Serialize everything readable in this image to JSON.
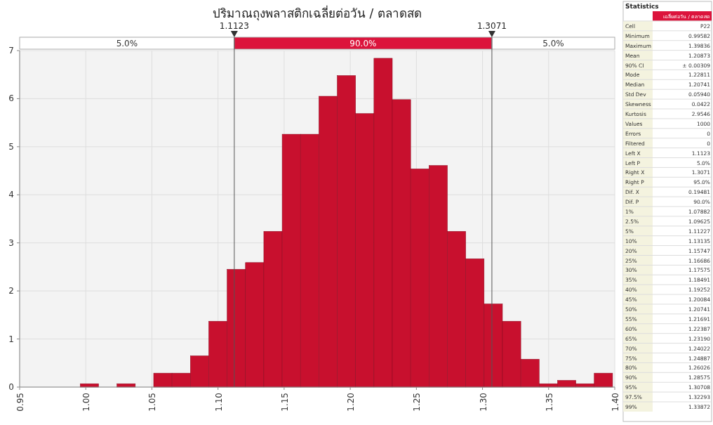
{
  "chart_data": [
    {
      "type": "histogram",
      "title": "ปริมาณถุงพลาสติกเฉลี่ยต่อวัน / ตลาดสด",
      "bins": [
        0.99582,
        1.0097,
        1.02358,
        1.03746,
        1.05134,
        1.06522,
        1.0791,
        1.09298,
        1.10687,
        1.12075,
        1.13463,
        1.14851,
        1.16239,
        1.17627,
        1.19015,
        1.20403,
        1.21791,
        1.23179,
        1.24567,
        1.25955,
        1.27344,
        1.28732,
        1.3012,
        1.31508,
        1.32896,
        1.34284,
        1.35672,
        1.3706,
        1.38448,
        1.39836
      ],
      "values": [
        0.07,
        0,
        0.07,
        0,
        0.29,
        0.29,
        0.65,
        1.37,
        2.45,
        2.59,
        3.24,
        5.26,
        5.26,
        6.05,
        6.48,
        5.69,
        6.84,
        5.98,
        4.54,
        4.61,
        3.24,
        2.67,
        1.73,
        1.37,
        0.58,
        0.07,
        0.14,
        0.07,
        0.29
      ],
      "color": "#c8102e",
      "xlim": [
        0.95,
        1.4
      ],
      "xticks": [
        0.95,
        {
          "value": 1.0,
          "label": "1.00"
        },
        1.05,
        {
          "value": 1.1,
          "label": "1.10"
        },
        1.15,
        {
          "value": 1.2,
          "label": "1.20"
        },
        1.25,
        {
          "value": 1.3,
          "label": "1.30"
        },
        1.35,
        {
          "value": 1.4,
          "label": "1.40"
        }
      ],
      "ylim": [
        0,
        7
      ],
      "yticks": [
        0,
        1,
        2,
        3,
        4,
        5,
        6,
        7
      ],
      "grid": true,
      "ref_lines": [
        {
          "axis": "x",
          "value": 1.1123,
          "label": "1.1123",
          "color": "#555555"
        },
        {
          "axis": "x",
          "value": 1.3071,
          "label": "1.3071",
          "color": "#555555"
        }
      ],
      "annotations": [
        "5.0%",
        "90.0%",
        "5.0%"
      ]
    },
    {
      "type": "other",
      "title": "Statistics",
      "subtitle": "เฉลี่ยต่อวัน / ตลาดสด",
      "categories": [
        "Cell",
        "Minimum",
        "Maximum",
        "Mean",
        "90% CI",
        "Mode",
        "Median",
        "Std Dev",
        "Skewness",
        "Kurtosis",
        "Values",
        "Errors",
        "Filtered",
        "Left X",
        "Left P",
        "Right X",
        "Right P",
        "Dif. X",
        "Dif. P",
        "1%",
        "2.5%",
        "5%",
        "10%",
        "20%",
        "25%",
        "30%",
        "35%",
        "40%",
        "45%",
        "50%",
        "55%",
        "60%",
        "65%",
        "70%",
        "75%",
        "80%",
        "90%",
        "95%",
        "97.5%",
        "99%"
      ],
      "value_labels": [
        "P22",
        "0.99582",
        "1.39836",
        "1.20873",
        "± 0.00309",
        "1.22811",
        "1.20741",
        "0.05940",
        "0.0422",
        "2.9546",
        "1000",
        "0",
        "0",
        "1.1123",
        "5.0%",
        "1.3071",
        "95.0%",
        "0.19481",
        "90.0%",
        "1.07882",
        "1.09625",
        "1.11227",
        "1.13135",
        "1.15747",
        "1.16686",
        "1.17575",
        "1.18491",
        "1.19252",
        "1.20084",
        "1.20741",
        "1.21691",
        "1.22387",
        "1.23190",
        "1.24022",
        "1.24887",
        "1.26026",
        "1.28575",
        "1.30708",
        "1.32293",
        "1.33872"
      ]
    }
  ]
}
